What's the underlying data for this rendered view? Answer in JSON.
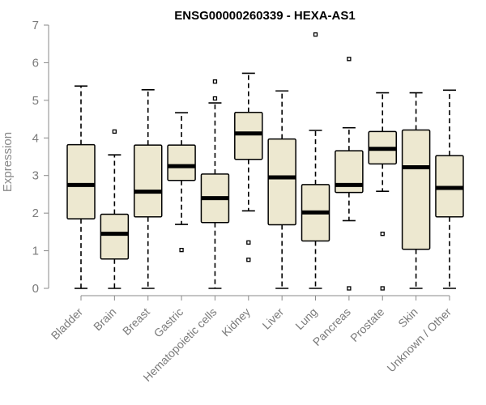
{
  "chart_data": {
    "type": "boxplot",
    "title": "ENSG00000260339 - HEXA-AS1",
    "xlabel": "",
    "ylabel": "Expression",
    "ylim": [
      0,
      7
    ],
    "yticks": [
      0,
      1,
      2,
      3,
      4,
      5,
      6,
      7
    ],
    "categories": [
      "Bladder",
      "Brain",
      "Breast",
      "Gastric",
      "Hematopoietic cells",
      "Kidney",
      "Liver",
      "Lung",
      "Pancreas",
      "Prostate",
      "Skin",
      "Unknown / Other"
    ],
    "boxes": [
      {
        "name": "Bladder",
        "min": 0.0,
        "q1": 1.85,
        "median": 2.75,
        "q3": 3.82,
        "max": 5.38,
        "outliers": []
      },
      {
        "name": "Brain",
        "min": 0.0,
        "q1": 0.78,
        "median": 1.45,
        "q3": 1.97,
        "max": 3.55,
        "outliers": [
          4.17
        ]
      },
      {
        "name": "Breast",
        "min": 0.0,
        "q1": 1.9,
        "median": 2.57,
        "q3": 3.81,
        "max": 5.28,
        "outliers": []
      },
      {
        "name": "Gastric",
        "min": 1.7,
        "q1": 2.87,
        "median": 3.25,
        "q3": 3.81,
        "max": 4.67,
        "outliers": [
          1.02
        ]
      },
      {
        "name": "Hematopoietic cells",
        "min": 0.0,
        "q1": 1.75,
        "median": 2.4,
        "q3": 3.04,
        "max": 4.93,
        "outliers": [
          5.05,
          5.5
        ]
      },
      {
        "name": "Kidney",
        "min": 2.06,
        "q1": 3.43,
        "median": 4.12,
        "q3": 4.68,
        "max": 5.72,
        "outliers": [
          1.22,
          0.76
        ]
      },
      {
        "name": "Liver",
        "min": 0.0,
        "q1": 1.69,
        "median": 2.95,
        "q3": 3.97,
        "max": 5.25,
        "outliers": []
      },
      {
        "name": "Lung",
        "min": 0.0,
        "q1": 1.26,
        "median": 2.02,
        "q3": 2.76,
        "max": 4.2,
        "outliers": [
          6.75
        ]
      },
      {
        "name": "Pancreas",
        "min": 1.8,
        "q1": 2.55,
        "median": 2.75,
        "q3": 3.66,
        "max": 4.27,
        "outliers": [
          6.1,
          0.0
        ]
      },
      {
        "name": "Prostate",
        "min": 2.58,
        "q1": 3.31,
        "median": 3.71,
        "q3": 4.17,
        "max": 5.2,
        "outliers": [
          1.45,
          0.0
        ]
      },
      {
        "name": "Skin",
        "min": 0.0,
        "q1": 1.04,
        "median": 3.22,
        "q3": 4.21,
        "max": 5.2,
        "outliers": []
      },
      {
        "name": "Unknown / Other",
        "min": 0.0,
        "q1": 1.9,
        "median": 2.67,
        "q3": 3.53,
        "max": 5.27,
        "outliers": []
      }
    ],
    "colors": {
      "box_fill": "#ede8d0",
      "stroke": "#000000",
      "axis": "#8a8a8a",
      "text": "#7a7a7a"
    }
  }
}
